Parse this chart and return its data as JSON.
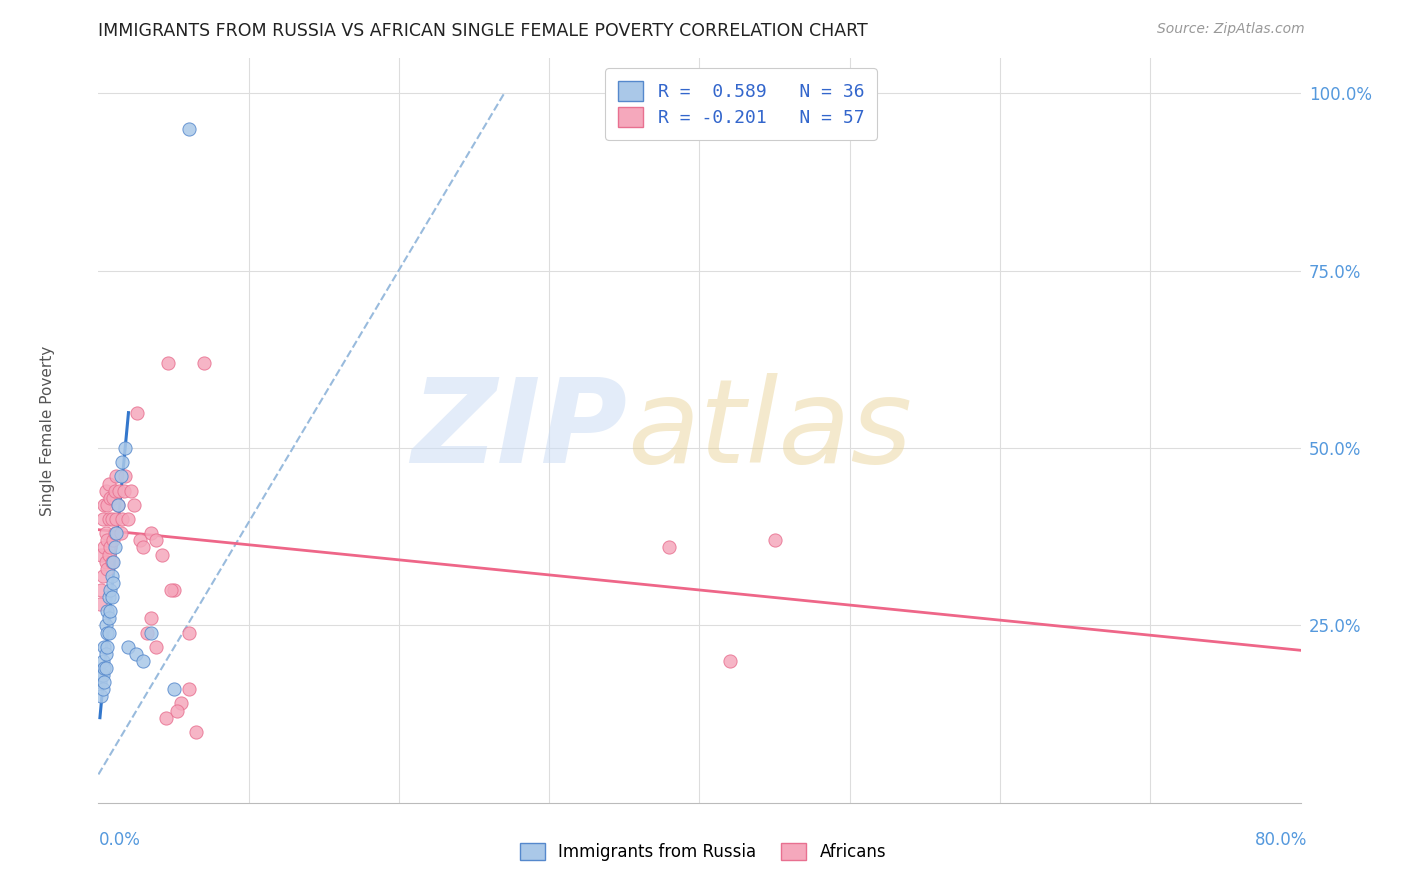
{
  "title": "IMMIGRANTS FROM RUSSIA VS AFRICAN SINGLE FEMALE POVERTY CORRELATION CHART",
  "source": "Source: ZipAtlas.com",
  "ylabel": "Single Female Poverty",
  "legend_r1": "R =  0.589",
  "legend_n1": "N = 36",
  "legend_r2": "R = -0.201",
  "legend_n2": "N = 57",
  "russia_color": "#aac8e8",
  "russia_edge": "#5588cc",
  "africa_color": "#f5a8bc",
  "africa_edge": "#e87090",
  "russia_line_color": "#3377cc",
  "africa_line_color": "#ee6688",
  "dashed_color": "#99bbdd",
  "xmin": 0.0,
  "xmax": 0.8,
  "ymin": 0.0,
  "ymax": 1.05,
  "yticks": [
    0.25,
    0.5,
    0.75,
    1.0
  ],
  "ytick_labels": [
    "25.0%",
    "50.0%",
    "75.0%",
    "100.0%"
  ],
  "russia_x": [
    0.001,
    0.002,
    0.002,
    0.003,
    0.003,
    0.003,
    0.004,
    0.004,
    0.004,
    0.005,
    0.005,
    0.005,
    0.006,
    0.006,
    0.006,
    0.007,
    0.007,
    0.007,
    0.008,
    0.008,
    0.009,
    0.009,
    0.01,
    0.01,
    0.011,
    0.012,
    0.013,
    0.015,
    0.016,
    0.018,
    0.02,
    0.025,
    0.03,
    0.035,
    0.05,
    0.06
  ],
  "russia_y": [
    0.17,
    0.15,
    0.18,
    0.16,
    0.18,
    0.2,
    0.17,
    0.19,
    0.22,
    0.19,
    0.21,
    0.25,
    0.22,
    0.24,
    0.27,
    0.24,
    0.26,
    0.29,
    0.27,
    0.3,
    0.29,
    0.32,
    0.31,
    0.34,
    0.36,
    0.38,
    0.42,
    0.46,
    0.48,
    0.5,
    0.22,
    0.21,
    0.2,
    0.24,
    0.16,
    0.95
  ],
  "africa_x": [
    0.001,
    0.002,
    0.002,
    0.003,
    0.003,
    0.004,
    0.004,
    0.005,
    0.005,
    0.005,
    0.006,
    0.006,
    0.006,
    0.007,
    0.007,
    0.007,
    0.008,
    0.008,
    0.009,
    0.009,
    0.01,
    0.01,
    0.011,
    0.011,
    0.012,
    0.012,
    0.013,
    0.014,
    0.015,
    0.016,
    0.017,
    0.018,
    0.02,
    0.022,
    0.024,
    0.026,
    0.028,
    0.03,
    0.032,
    0.035,
    0.038,
    0.042,
    0.046,
    0.05,
    0.06,
    0.07,
    0.38,
    0.42,
    0.45,
    0.055,
    0.035,
    0.038,
    0.045,
    0.048,
    0.052,
    0.06,
    0.065
  ],
  "africa_y": [
    0.28,
    0.3,
    0.35,
    0.32,
    0.4,
    0.36,
    0.42,
    0.34,
    0.38,
    0.44,
    0.33,
    0.37,
    0.42,
    0.35,
    0.4,
    0.45,
    0.36,
    0.43,
    0.34,
    0.4,
    0.37,
    0.43,
    0.38,
    0.44,
    0.4,
    0.46,
    0.42,
    0.44,
    0.38,
    0.4,
    0.44,
    0.46,
    0.4,
    0.44,
    0.42,
    0.55,
    0.37,
    0.36,
    0.24,
    0.38,
    0.37,
    0.35,
    0.62,
    0.3,
    0.24,
    0.62,
    0.36,
    0.2,
    0.37,
    0.14,
    0.26,
    0.22,
    0.12,
    0.3,
    0.13,
    0.16,
    0.1
  ],
  "russia_line_x": [
    0.001,
    0.02
  ],
  "russia_line_y": [
    0.12,
    0.55
  ],
  "dashed_line_x": [
    0.0,
    0.27
  ],
  "dashed_line_y": [
    0.04,
    1.0
  ],
  "africa_line_x": [
    0.0,
    0.8
  ],
  "africa_line_y": [
    0.385,
    0.215
  ]
}
